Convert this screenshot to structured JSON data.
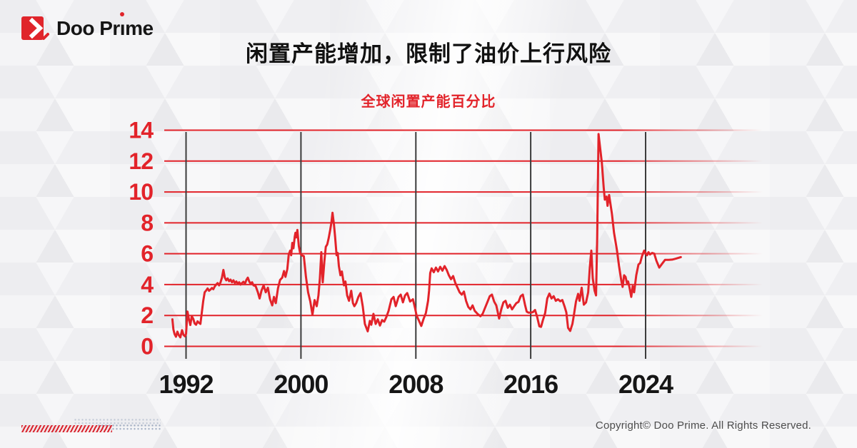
{
  "brand": {
    "logo_text": "Doo Prime",
    "logo_icon": "doo-prime-arrow-icon",
    "logo_red": "#e0252b"
  },
  "header": {
    "title": "闲置产能增加，限制了油价上行风险",
    "subtitle": "全球闲置产能百分比"
  },
  "footer": {
    "copyright": "Copyright© Doo Prime. All Rights Reserved."
  },
  "colors": {
    "accent_red": "#e2232a",
    "grid_red": "#e2232a",
    "vertical_grid_dark": "#3c3c3c",
    "x_label_black": "#161616",
    "background_gray": "#f0f0f2",
    "copyright_gray": "#4d4d4d",
    "dot_pattern_blue": "#8596b2"
  },
  "chart_data": {
    "type": "line",
    "title": "全球闲置产能百分比",
    "xlabel": "",
    "ylabel": "",
    "ylim": [
      0,
      14
    ],
    "yticks": [
      0,
      2,
      4,
      6,
      8,
      10,
      12,
      14
    ],
    "xticks": [
      1992,
      2000,
      2008,
      2016,
      2024
    ],
    "x_range": [
      1991.05,
      2026.45
    ],
    "grid": {
      "horizontal": "red, fading at right edge",
      "vertical": "dark gray at year ticks"
    },
    "legend": "none",
    "series": [
      {
        "name": "全球闲置产能百分比",
        "color": "#e2232a",
        "points": [
          [
            1991.05,
            1.75
          ],
          [
            1991.12,
            1.1
          ],
          [
            1991.2,
            0.8
          ],
          [
            1991.3,
            0.62
          ],
          [
            1991.4,
            0.95
          ],
          [
            1991.5,
            0.72
          ],
          [
            1991.6,
            0.58
          ],
          [
            1991.72,
            1.05
          ],
          [
            1991.82,
            0.75
          ],
          [
            1991.92,
            0.65
          ],
          [
            1992.0,
            0.8
          ],
          [
            1992.1,
            2.25
          ],
          [
            1992.2,
            1.75
          ],
          [
            1992.3,
            1.38
          ],
          [
            1992.4,
            1.95
          ],
          [
            1992.5,
            1.78
          ],
          [
            1992.6,
            1.48
          ],
          [
            1992.7,
            1.4
          ],
          [
            1992.8,
            1.62
          ],
          [
            1992.9,
            1.52
          ],
          [
            1993.0,
            1.45
          ],
          [
            1993.1,
            2.2
          ],
          [
            1993.2,
            2.95
          ],
          [
            1993.3,
            3.5
          ],
          [
            1993.4,
            3.62
          ],
          [
            1993.5,
            3.75
          ],
          [
            1993.6,
            3.6
          ],
          [
            1993.7,
            3.68
          ],
          [
            1993.8,
            3.78
          ],
          [
            1993.9,
            3.7
          ],
          [
            1994.0,
            3.88
          ],
          [
            1994.1,
            4.0
          ],
          [
            1994.2,
            4.1
          ],
          [
            1994.3,
            3.95
          ],
          [
            1994.4,
            4.15
          ],
          [
            1994.5,
            4.45
          ],
          [
            1994.6,
            4.95
          ],
          [
            1994.7,
            4.45
          ],
          [
            1994.8,
            4.28
          ],
          [
            1994.9,
            4.4
          ],
          [
            1995.0,
            4.22
          ],
          [
            1995.1,
            4.32
          ],
          [
            1995.2,
            4.15
          ],
          [
            1995.3,
            4.28
          ],
          [
            1995.4,
            4.1
          ],
          [
            1995.5,
            4.2
          ],
          [
            1995.6,
            4.05
          ],
          [
            1995.7,
            4.15
          ],
          [
            1995.8,
            4.0
          ],
          [
            1995.9,
            4.1
          ],
          [
            1996.0,
            4.18
          ],
          [
            1996.1,
            4.05
          ],
          [
            1996.2,
            4.3
          ],
          [
            1996.3,
            4.45
          ],
          [
            1996.4,
            4.2
          ],
          [
            1996.5,
            4.05
          ],
          [
            1996.6,
            4.15
          ],
          [
            1996.7,
            3.95
          ],
          [
            1996.85,
            3.9
          ],
          [
            1997.0,
            3.5
          ],
          [
            1997.12,
            3.1
          ],
          [
            1997.25,
            3.6
          ],
          [
            1997.4,
            3.95
          ],
          [
            1997.55,
            3.5
          ],
          [
            1997.7,
            3.8
          ],
          [
            1997.85,
            3.05
          ],
          [
            1998.0,
            2.65
          ],
          [
            1998.12,
            3.2
          ],
          [
            1998.25,
            2.8
          ],
          [
            1998.4,
            3.75
          ],
          [
            1998.55,
            4.3
          ],
          [
            1998.7,
            4.45
          ],
          [
            1998.82,
            4.88
          ],
          [
            1998.92,
            4.5
          ],
          [
            1999.05,
            5.0
          ],
          [
            1999.15,
            5.95
          ],
          [
            1999.25,
            6.2
          ],
          [
            1999.32,
            5.9
          ],
          [
            1999.4,
            6.7
          ],
          [
            1999.48,
            6.35
          ],
          [
            1999.57,
            7.1
          ],
          [
            1999.62,
            7.35
          ],
          [
            1999.67,
            7.05
          ],
          [
            1999.75,
            7.54
          ],
          [
            1999.85,
            6.5
          ],
          [
            1999.95,
            6.0
          ],
          [
            2000.08,
            5.88
          ],
          [
            2000.2,
            5.85
          ],
          [
            2000.35,
            4.5
          ],
          [
            2000.5,
            3.5
          ],
          [
            2000.65,
            2.9
          ],
          [
            2000.8,
            2.05
          ],
          [
            2000.95,
            3.0
          ],
          [
            2001.1,
            2.6
          ],
          [
            2001.22,
            3.3
          ],
          [
            2001.32,
            4.4
          ],
          [
            2001.42,
            6.1
          ],
          [
            2001.52,
            4.15
          ],
          [
            2001.63,
            5.5
          ],
          [
            2001.73,
            6.45
          ],
          [
            2001.83,
            6.6
          ],
          [
            2001.93,
            7.0
          ],
          [
            2002.03,
            7.5
          ],
          [
            2002.12,
            8.0
          ],
          [
            2002.2,
            8.65
          ],
          [
            2002.3,
            7.9
          ],
          [
            2002.38,
            7.1
          ],
          [
            2002.48,
            5.9
          ],
          [
            2002.56,
            6.05
          ],
          [
            2002.64,
            5.2
          ],
          [
            2002.75,
            4.6
          ],
          [
            2002.85,
            4.85
          ],
          [
            2003.0,
            3.95
          ],
          [
            2003.1,
            4.2
          ],
          [
            2003.22,
            3.3
          ],
          [
            2003.35,
            2.95
          ],
          [
            2003.5,
            3.6
          ],
          [
            2003.62,
            2.8
          ],
          [
            2003.72,
            2.6
          ],
          [
            2003.85,
            2.8
          ],
          [
            2004.0,
            3.2
          ],
          [
            2004.15,
            3.45
          ],
          [
            2004.3,
            2.6
          ],
          [
            2004.45,
            1.45
          ],
          [
            2004.65,
            0.97
          ],
          [
            2004.8,
            1.65
          ],
          [
            2004.9,
            1.4
          ],
          [
            2005.05,
            2.1
          ],
          [
            2005.2,
            1.45
          ],
          [
            2005.35,
            1.75
          ],
          [
            2005.5,
            1.35
          ],
          [
            2005.65,
            1.7
          ],
          [
            2005.8,
            1.6
          ],
          [
            2005.95,
            1.9
          ],
          [
            2006.1,
            2.3
          ],
          [
            2006.3,
            3.05
          ],
          [
            2006.45,
            3.2
          ],
          [
            2006.6,
            2.6
          ],
          [
            2006.8,
            3.2
          ],
          [
            2006.95,
            3.35
          ],
          [
            2007.1,
            2.85
          ],
          [
            2007.25,
            3.3
          ],
          [
            2007.4,
            3.45
          ],
          [
            2007.6,
            2.9
          ],
          [
            2007.8,
            3.05
          ],
          [
            2007.95,
            2.45
          ],
          [
            2008.05,
            2.0
          ],
          [
            2008.2,
            1.7
          ],
          [
            2008.38,
            1.32
          ],
          [
            2008.55,
            1.8
          ],
          [
            2008.7,
            2.15
          ],
          [
            2008.85,
            2.95
          ],
          [
            2008.92,
            3.6
          ],
          [
            2009.0,
            4.75
          ],
          [
            2009.1,
            5.05
          ],
          [
            2009.25,
            4.8
          ],
          [
            2009.4,
            5.1
          ],
          [
            2009.55,
            4.85
          ],
          [
            2009.7,
            5.15
          ],
          [
            2009.85,
            4.9
          ],
          [
            2010.0,
            5.2
          ],
          [
            2010.15,
            4.95
          ],
          [
            2010.3,
            4.6
          ],
          [
            2010.45,
            4.35
          ],
          [
            2010.6,
            4.55
          ],
          [
            2010.75,
            4.1
          ],
          [
            2010.9,
            3.8
          ],
          [
            2011.05,
            3.5
          ],
          [
            2011.2,
            3.35
          ],
          [
            2011.35,
            3.55
          ],
          [
            2011.5,
            2.95
          ],
          [
            2011.65,
            2.55
          ],
          [
            2011.8,
            2.4
          ],
          [
            2011.95,
            2.65
          ],
          [
            2012.1,
            2.3
          ],
          [
            2012.3,
            2.1
          ],
          [
            2012.5,
            1.95
          ],
          [
            2012.65,
            2.1
          ],
          [
            2012.8,
            2.45
          ],
          [
            2013.0,
            2.9
          ],
          [
            2013.15,
            3.25
          ],
          [
            2013.3,
            3.35
          ],
          [
            2013.45,
            2.9
          ],
          [
            2013.6,
            2.65
          ],
          [
            2013.8,
            1.8
          ],
          [
            2013.95,
            2.4
          ],
          [
            2014.1,
            2.85
          ],
          [
            2014.25,
            2.95
          ],
          [
            2014.4,
            2.5
          ],
          [
            2014.55,
            2.7
          ],
          [
            2014.7,
            2.4
          ],
          [
            2014.85,
            2.6
          ],
          [
            2015.0,
            2.8
          ],
          [
            2015.15,
            2.88
          ],
          [
            2015.3,
            3.25
          ],
          [
            2015.45,
            3.35
          ],
          [
            2015.6,
            2.7
          ],
          [
            2015.72,
            2.25
          ],
          [
            2015.85,
            2.18
          ],
          [
            2016.0,
            2.18
          ],
          [
            2016.15,
            2.22
          ],
          [
            2016.3,
            2.35
          ],
          [
            2016.45,
            1.9
          ],
          [
            2016.6,
            1.3
          ],
          [
            2016.72,
            1.26
          ],
          [
            2016.85,
            1.7
          ],
          [
            2017.0,
            2.15
          ],
          [
            2017.15,
            3.1
          ],
          [
            2017.3,
            3.42
          ],
          [
            2017.45,
            3.1
          ],
          [
            2017.6,
            3.25
          ],
          [
            2017.75,
            2.95
          ],
          [
            2017.9,
            3.05
          ],
          [
            2018.05,
            2.92
          ],
          [
            2018.2,
            3.0
          ],
          [
            2018.35,
            2.6
          ],
          [
            2018.48,
            2.2
          ],
          [
            2018.6,
            1.2
          ],
          [
            2018.75,
            1.0
          ],
          [
            2018.9,
            1.45
          ],
          [
            2019.0,
            2.0
          ],
          [
            2019.15,
            2.9
          ],
          [
            2019.3,
            3.4
          ],
          [
            2019.4,
            2.95
          ],
          [
            2019.55,
            3.8
          ],
          [
            2019.7,
            2.7
          ],
          [
            2019.85,
            2.85
          ],
          [
            2020.0,
            3.5
          ],
          [
            2020.12,
            5.2
          ],
          [
            2020.22,
            6.2
          ],
          [
            2020.32,
            4.4
          ],
          [
            2020.45,
            3.6
          ],
          [
            2020.55,
            3.3
          ],
          [
            2020.63,
            7.0
          ],
          [
            2020.72,
            13.75
          ],
          [
            2020.85,
            12.7
          ],
          [
            2020.95,
            11.9
          ],
          [
            2021.08,
            10.3
          ],
          [
            2021.16,
            9.5
          ],
          [
            2021.28,
            9.7
          ],
          [
            2021.35,
            9.1
          ],
          [
            2021.46,
            9.8
          ],
          [
            2021.65,
            8.6
          ],
          [
            2021.8,
            7.35
          ],
          [
            2022.0,
            6.25
          ],
          [
            2022.15,
            5.2
          ],
          [
            2022.3,
            4.3
          ],
          [
            2022.4,
            3.85
          ],
          [
            2022.5,
            4.6
          ],
          [
            2022.6,
            4.5
          ],
          [
            2022.7,
            4.1
          ],
          [
            2022.78,
            4.2
          ],
          [
            2022.88,
            3.8
          ],
          [
            2023.0,
            3.2
          ],
          [
            2023.1,
            3.9
          ],
          [
            2023.2,
            3.5
          ],
          [
            2023.35,
            4.6
          ],
          [
            2023.5,
            5.3
          ],
          [
            2023.62,
            5.4
          ],
          [
            2023.75,
            5.85
          ],
          [
            2023.9,
            6.2
          ],
          [
            2024.0,
            6.05
          ],
          [
            2024.1,
            5.9
          ],
          [
            2024.2,
            6.1
          ],
          [
            2024.3,
            5.95
          ],
          [
            2024.45,
            6.05
          ],
          [
            2024.6,
            6.0
          ],
          [
            2024.75,
            5.55
          ],
          [
            2024.95,
            5.1
          ],
          [
            2025.15,
            5.35
          ],
          [
            2025.35,
            5.6
          ],
          [
            2025.6,
            5.6
          ],
          [
            2025.85,
            5.62
          ],
          [
            2026.1,
            5.68
          ],
          [
            2026.45,
            5.78
          ]
        ]
      }
    ]
  }
}
